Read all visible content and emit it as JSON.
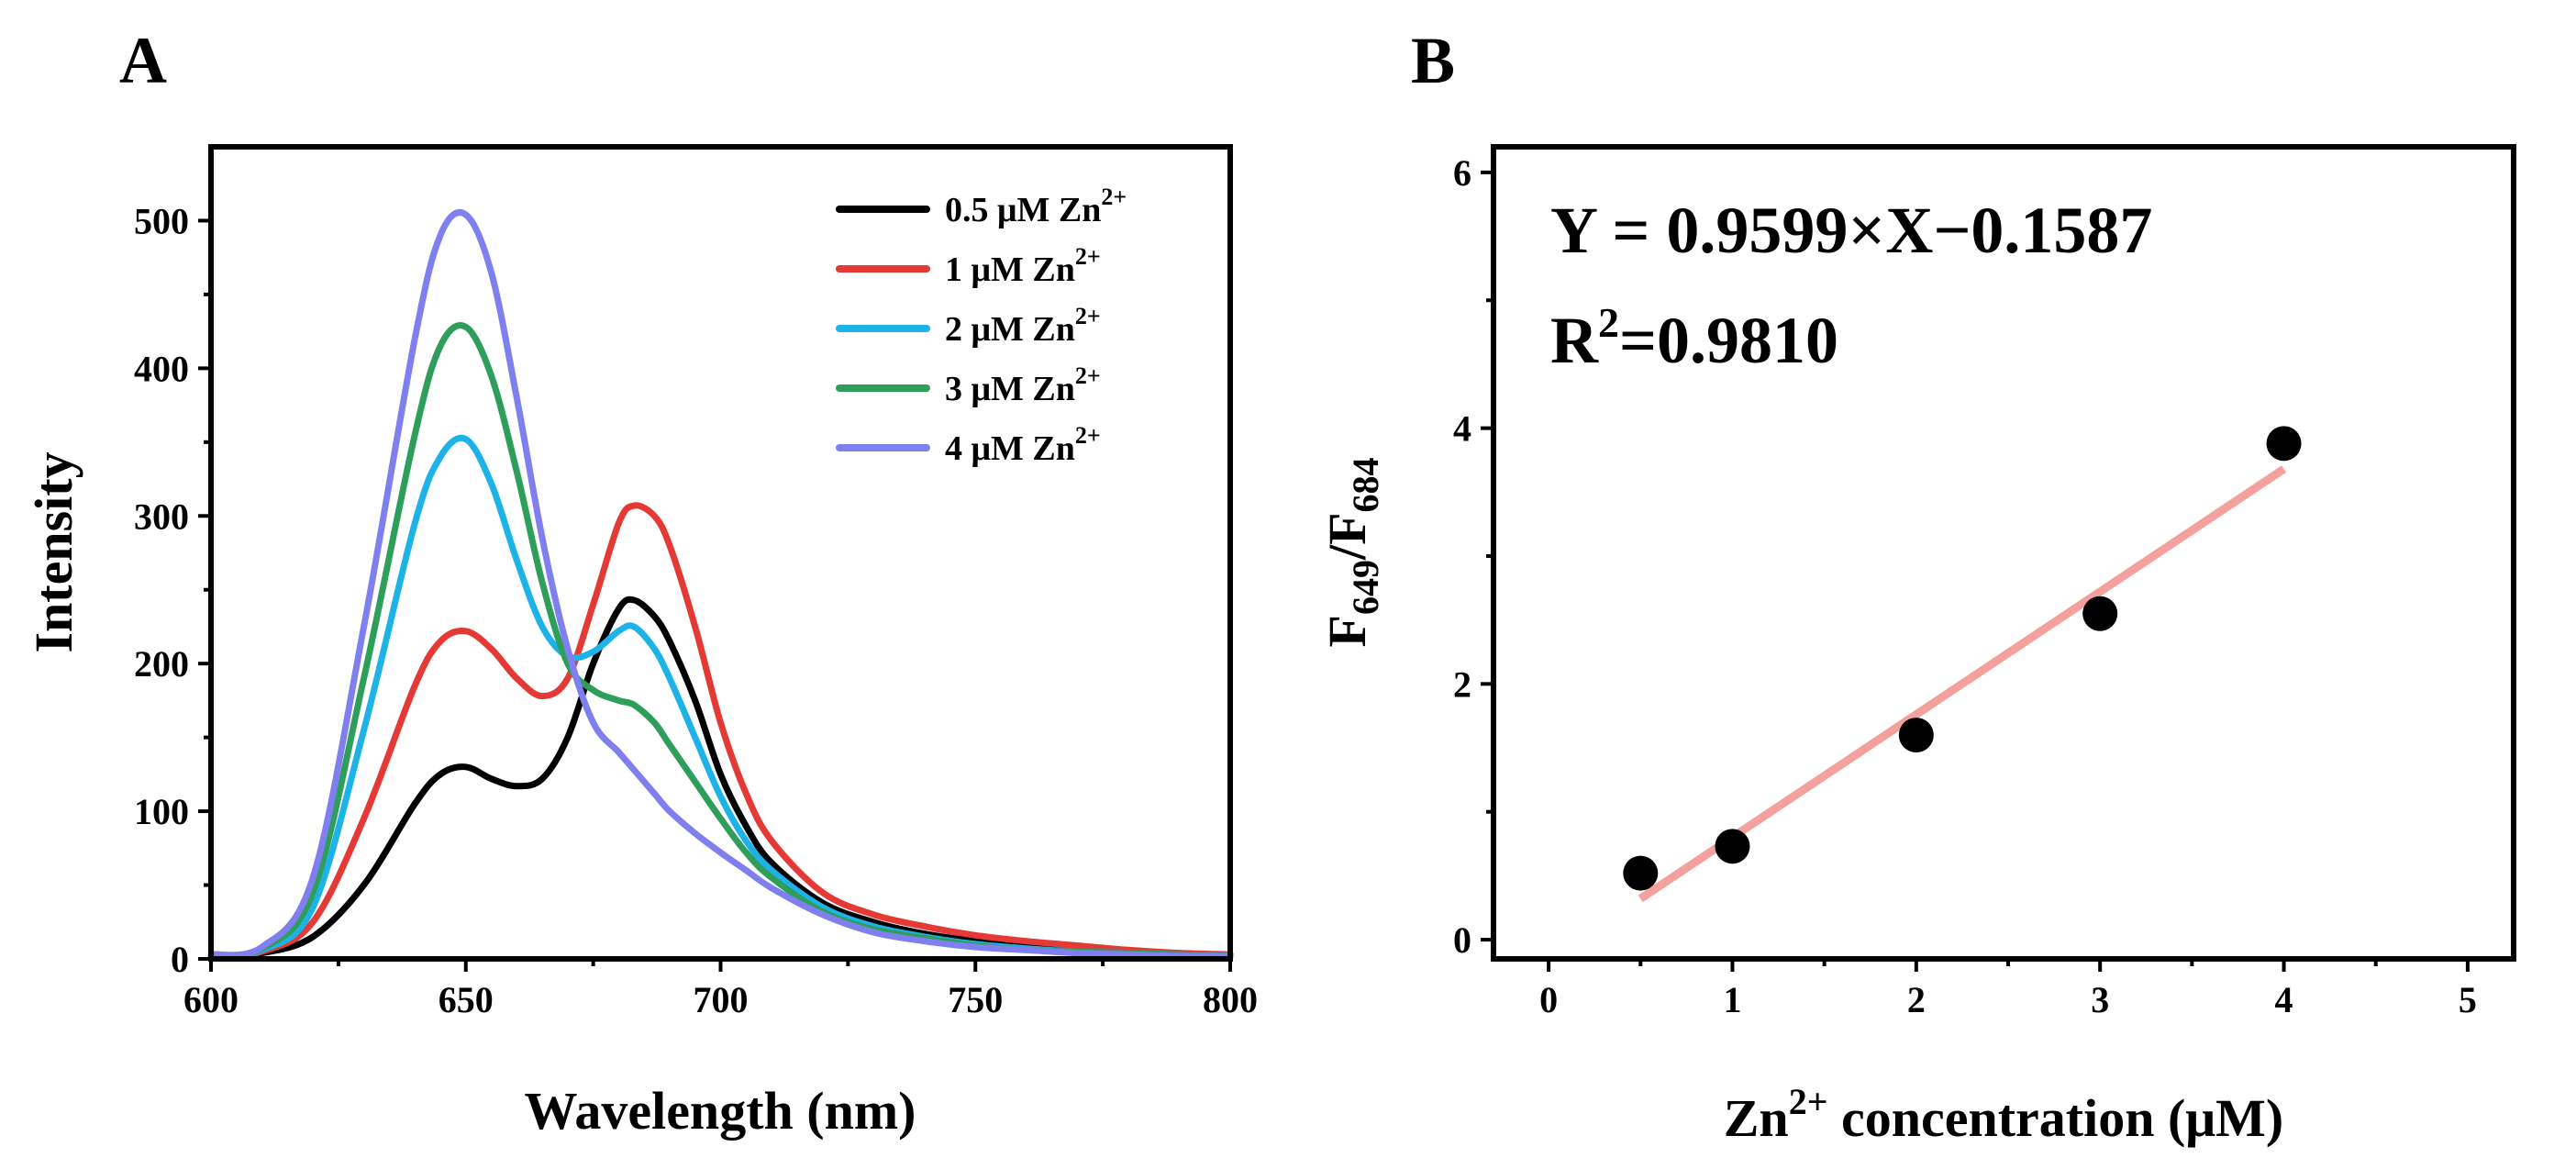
{
  "chart_data": [
    {
      "panel": "A",
      "type": "line",
      "title": "",
      "xlabel": "Wavelength (nm)",
      "ylabel": "Intensity",
      "xlim": [
        600,
        800
      ],
      "ylim": [
        0,
        550
      ],
      "xticks": [
        600,
        650,
        700,
        750,
        800
      ],
      "yticks": [
        0,
        100,
        200,
        300,
        400,
        500
      ],
      "legend_position": "top-right",
      "x": [
        600,
        610,
        620,
        630,
        640,
        645,
        650,
        655,
        660,
        665,
        670,
        675,
        680,
        683,
        687,
        690,
        695,
        700,
        705,
        710,
        720,
        730,
        740,
        750,
        760,
        770,
        780,
        790,
        800
      ],
      "series": [
        {
          "name": "0.5 μM Zn",
          "sup": "2+",
          "color": "#000000",
          "values": [
            2,
            4,
            15,
            50,
            105,
            125,
            130,
            122,
            117,
            122,
            150,
            200,
            237,
            243,
            232,
            215,
            175,
            125,
            90,
            65,
            38,
            25,
            17,
            12,
            8,
            6,
            4,
            3,
            2
          ]
        },
        {
          "name": "1 μM Zn",
          "sup": "2+",
          "color": "#e53935",
          "values": [
            2,
            5,
            25,
            95,
            185,
            215,
            222,
            210,
            190,
            178,
            190,
            240,
            295,
            307,
            300,
            280,
            225,
            160,
            112,
            80,
            45,
            30,
            22,
            16,
            12,
            9,
            6,
            4,
            3
          ]
        },
        {
          "name": "2 μM Zn",
          "sup": "2+",
          "color": "#1eb3e8",
          "values": [
            2,
            6,
            35,
            155,
            295,
            340,
            352,
            322,
            270,
            225,
            205,
            208,
            222,
            225,
            210,
            190,
            150,
            110,
            80,
            60,
            35,
            22,
            15,
            10,
            7,
            5,
            4,
            3,
            2
          ]
        },
        {
          "name": "3 μM Zn",
          "sup": "2+",
          "color": "#2e9e5b",
          "values": [
            2,
            7,
            45,
            190,
            355,
            415,
            428,
            395,
            330,
            255,
            200,
            182,
            175,
            172,
            160,
            145,
            120,
            95,
            72,
            55,
            32,
            20,
            14,
            9,
            6,
            5,
            4,
            3,
            2
          ]
        },
        {
          "name": "4 μM Zn",
          "sup": "2+",
          "color": "#7f7ff0",
          "values": [
            3,
            8,
            55,
            225,
            420,
            490,
            504,
            465,
            380,
            285,
            210,
            160,
            140,
            128,
            112,
            100,
            85,
            72,
            60,
            48,
            30,
            18,
            12,
            8,
            6,
            4,
            3,
            2,
            2
          ]
        }
      ]
    },
    {
      "panel": "B",
      "type": "scatter",
      "title": "",
      "xlabel_main": "Zn",
      "xlabel_sup": "2+",
      "xlabel_rest": " concentration (μM)",
      "ylabel_base1": "F",
      "ylabel_sub1": "649",
      "ylabel_sep": "/F",
      "ylabel_sub2": "684",
      "xlim": [
        -0.3,
        5.25
      ],
      "ylim": [
        -0.15,
        6.2
      ],
      "xticks": [
        0,
        1,
        2,
        3,
        4,
        5
      ],
      "yticks": [
        0,
        2,
        4,
        6
      ],
      "points": {
        "x": [
          0.5,
          1,
          2,
          3,
          4
        ],
        "y": [
          0.52,
          0.73,
          1.6,
          2.55,
          3.88
        ]
      },
      "fit": {
        "slope": 0.9599,
        "intercept": -0.1587,
        "x_range": [
          0.5,
          4
        ],
        "color": "#f4a09c"
      },
      "point_color": "#000000",
      "equation": "Y = 0.9599×X−0.1587",
      "r2_prefix": "R",
      "r2_sup": "2",
      "r2_value": "=0.9810"
    }
  ]
}
